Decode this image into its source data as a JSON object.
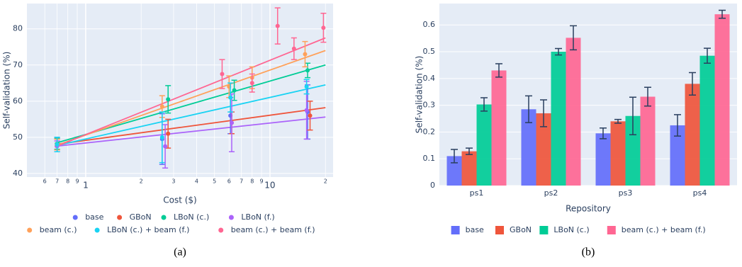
{
  "chart_data": [
    {
      "type": "scatter",
      "x_label": "Cost ($)",
      "y_label": "Self-validation (%)",
      "caption": "(a)",
      "log_x": true,
      "grid": true,
      "xlim": [
        0.48,
        22
      ],
      "ylim": [
        39,
        87
      ],
      "xticks": [
        {
          "value": 0.6,
          "label": "6"
        },
        {
          "value": 0.7,
          "label": "7"
        },
        {
          "value": 0.8,
          "label": "8"
        },
        {
          "value": 0.9,
          "label": "9"
        },
        1,
        2,
        3,
        4,
        5,
        6,
        7,
        8,
        9,
        10,
        {
          "value": 20,
          "label": "2"
        }
      ],
      "yticks": [
        40,
        50,
        60,
        70,
        80
      ],
      "trend_x": [
        0.68,
        20
      ],
      "series": [
        {
          "name": "base",
          "color": "#636efa",
          "x": [
            0.7,
            2.6,
            6.1,
            16
          ],
          "values": [
            48,
            49.5,
            56,
            57
          ],
          "errors": [
            2,
            7,
            5,
            7.5
          ]
        },
        {
          "name": "GBoN",
          "color": "#ef553b",
          "x": [
            0.7,
            2.8,
            6.2,
            16.5
          ],
          "values": [
            48,
            51,
            54,
            56
          ],
          "errors": [
            1.5,
            4,
            3,
            4
          ],
          "trend": [
            48,
            58.2
          ]
        },
        {
          "name": "LBoN (c.)",
          "color": "#00cc96",
          "x": [
            0.7,
            2.8,
            6.4,
            16
          ],
          "values": [
            48.2,
            60.5,
            63,
            68.5
          ],
          "errors": [
            1.5,
            3.8,
            2.8,
            2
          ],
          "trend": [
            48.3,
            70
          ]
        },
        {
          "name": "LBoN (f.)",
          "color": "#ab63fa",
          "x": [
            0.7,
            2.7,
            6.2,
            15.8
          ],
          "values": [
            47.5,
            47.5,
            54,
            57.5
          ],
          "errors": [
            1.5,
            6,
            8,
            8
          ],
          "trend": [
            47.5,
            55.6
          ]
        },
        {
          "name": "beam (c.)",
          "color": "#ffa15a",
          "x": [
            0.7,
            2.6,
            6,
            8,
            15.5
          ],
          "values": [
            48,
            58.5,
            64,
            66.5,
            73
          ],
          "errors": [
            1.5,
            3,
            3,
            3,
            3.5
          ],
          "trend": [
            47.6,
            74
          ]
        },
        {
          "name": "LBoN (c.) + beam (f.)",
          "color": "#19d3f3",
          "x": [
            0.7,
            2.6,
            6.1,
            15.8
          ],
          "values": [
            48,
            50,
            61,
            64
          ],
          "errors": [
            2,
            7,
            4,
            2
          ],
          "trend": [
            47.6,
            64.5
          ]
        },
        {
          "name": "beam (c.) + beam (f.)",
          "color": "#ff6692",
          "x": [
            5.5,
            8,
            11,
            13.5,
            19.5
          ],
          "values": [
            67.5,
            65,
            80.8,
            74.5,
            80.3
          ],
          "errors": [
            4,
            2.5,
            5,
            3,
            4
          ],
          "trend": [
            47.3,
            77.5
          ]
        }
      ]
    },
    {
      "type": "bar",
      "x_label": "Repository",
      "y_label": "Self-validation (%)",
      "caption": "(b)",
      "grid": true,
      "categories": [
        "ps1",
        "ps2",
        "ps3",
        "ps4"
      ],
      "ylim": [
        0,
        0.68
      ],
      "yticks": [
        0,
        0.1,
        0.2,
        0.3,
        0.4,
        0.5,
        0.6
      ],
      "series": [
        {
          "name": "base",
          "color": "#636efa",
          "values": [
            0.11,
            0.285,
            0.195,
            0.225
          ],
          "errors": [
            0.025,
            0.05,
            0.02,
            0.04
          ]
        },
        {
          "name": "GBoN",
          "color": "#ef553b",
          "values": [
            0.128,
            0.27,
            0.24,
            0.38
          ],
          "errors": [
            0.012,
            0.05,
            0.007,
            0.042
          ]
        },
        {
          "name": "LBoN (c.)",
          "color": "#00cc96",
          "values": [
            0.303,
            0.5,
            0.26,
            0.485
          ],
          "errors": [
            0.025,
            0.012,
            0.07,
            0.028
          ]
        },
        {
          "name": "beam (c.) + beam (f.)",
          "color": "#ff6692",
          "values": [
            0.43,
            0.552,
            0.332,
            0.64
          ],
          "errors": [
            0.025,
            0.045,
            0.035,
            0.015
          ]
        }
      ]
    }
  ]
}
